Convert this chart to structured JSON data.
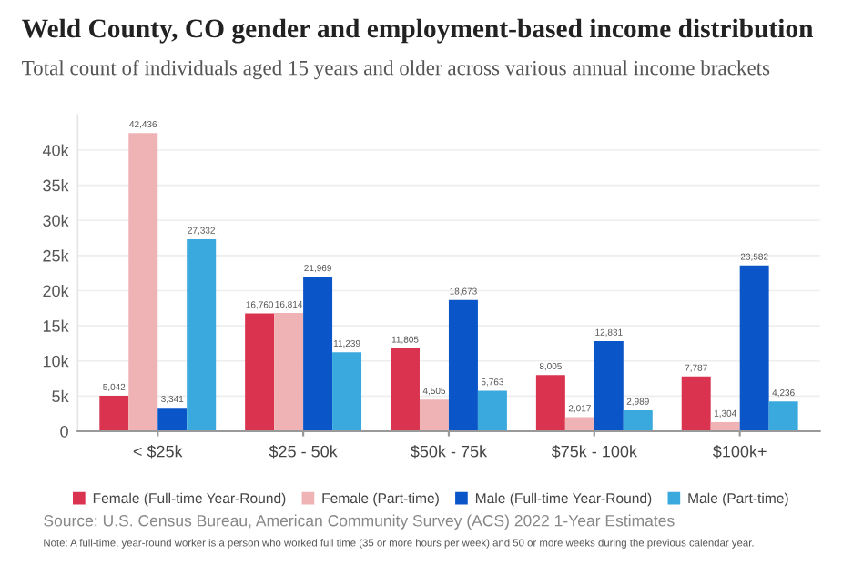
{
  "chart_data": {
    "type": "bar",
    "title": "Weld County, CO gender and employment-based income distribution",
    "subtitle": "Total count of individuals aged 15 years and older across various annual income brackets",
    "categories": [
      "< $25k",
      "$25 - 50k",
      "$50k - 75k",
      "$75k - 100k",
      "$100k+"
    ],
    "series": [
      {
        "name": "Female (Full-time Year-Round)",
        "color": "#d9334f",
        "values": [
          5042,
          16760,
          11805,
          8005,
          7787
        ],
        "value_labels": [
          "5,042",
          "16,760",
          "11,805",
          "8,005",
          "7,787"
        ]
      },
      {
        "name": "Female (Part-time)",
        "color": "#efb3b6",
        "values": [
          42436,
          16814,
          4505,
          2017,
          1304
        ],
        "value_labels": [
          "42,436",
          "16,814",
          "4,505",
          "2,017",
          "1,304"
        ]
      },
      {
        "name": "Male (Full-time Year-Round)",
        "color": "#0a56c8",
        "values": [
          3341,
          21969,
          18673,
          12831,
          23582
        ],
        "value_labels": [
          "3,341",
          "21,969",
          "18,673",
          "12,831",
          "23,582"
        ]
      },
      {
        "name": "Male (Part-time)",
        "color": "#3aa9dd",
        "values": [
          27332,
          11239,
          5763,
          2989,
          4236
        ],
        "value_labels": [
          "27,332",
          "11,239",
          "5,763",
          "2,989",
          "4,236"
        ]
      }
    ],
    "ylim": [
      0,
      45000
    ],
    "yticks": [
      0,
      {
        "value": 5000,
        "label": "5k"
      },
      {
        "value": 10000,
        "label": "10k"
      },
      {
        "value": 15000,
        "label": "15k"
      },
      {
        "value": 20000,
        "label": "20k"
      },
      {
        "value": 25000,
        "label": "25k"
      },
      {
        "value": 30000,
        "label": "30k"
      },
      {
        "value": 35000,
        "label": "35k"
      },
      {
        "value": 40000,
        "label": "40k"
      }
    ],
    "grid": "y",
    "legend": "bottom",
    "annotations": [
      "Source: U.S. Census Bureau, American Community Survey (ACS) 2022 1-Year Estimates",
      "Note: A full-time, year-round worker is a person who worked full time (35 or more hours per week) and 50 or more weeks during the previous calendar year."
    ]
  }
}
